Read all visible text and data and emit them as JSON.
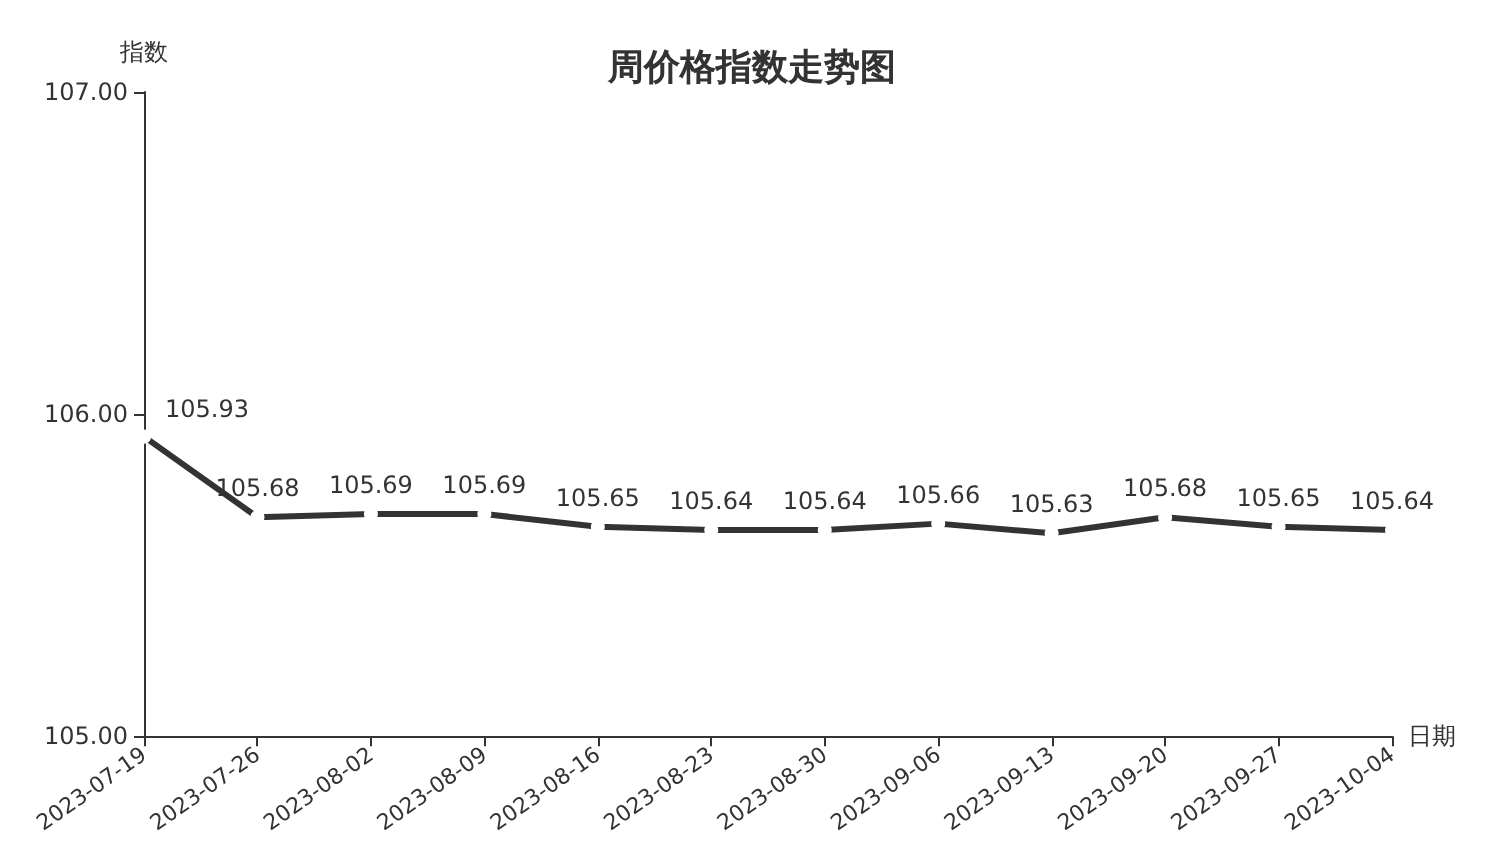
{
  "chart_data": {
    "type": "line",
    "title": "周价格指数走势图",
    "xlabel": "日期",
    "ylabel": "指数",
    "categories": [
      "2023-07-19",
      "2023-07-26",
      "2023-08-02",
      "2023-08-09",
      "2023-08-16",
      "2023-08-23",
      "2023-08-30",
      "2023-09-06",
      "2023-09-13",
      "2023-09-20",
      "2023-09-27",
      "2023-10-04"
    ],
    "series": [
      {
        "color": "#333333",
        "values": [
          105.93,
          105.68,
          105.69,
          105.69,
          105.65,
          105.64,
          105.64,
          105.66,
          105.63,
          105.68,
          105.65,
          105.64
        ]
      }
    ],
    "ylim": [
      105,
      107
    ],
    "yticks": [
      {
        "value": 105,
        "label": "105.00"
      },
      {
        "value": 106,
        "label": "106.00"
      },
      {
        "value": 107,
        "label": "107.00"
      }
    ],
    "data_labels": true,
    "grid": false,
    "marker": "circle",
    "line_style": "solid"
  }
}
